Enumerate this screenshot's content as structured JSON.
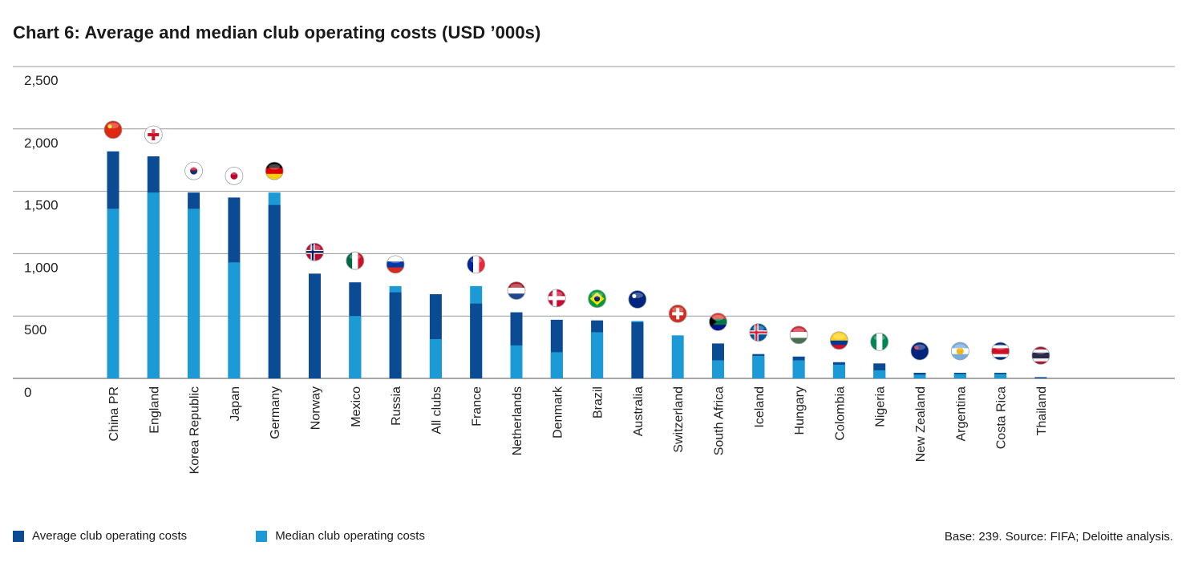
{
  "chart_data": {
    "type": "bar",
    "stacking": "overlay",
    "title": "Chart 6: Average and median club operating costs (USD ’000s)",
    "xlabel": "",
    "ylabel": "",
    "ylim": [
      0,
      2500
    ],
    "yticks": [
      0,
      500,
      1000,
      1500,
      2000,
      2500
    ],
    "ytick_labels": [
      "0",
      "500",
      "1,000",
      "1,500",
      "2,000",
      "2,500"
    ],
    "grid": true,
    "categories": [
      "China PR",
      "England",
      "Korea Republic",
      "Japan",
      "Germany",
      "Norway",
      "Mexico",
      "Russia",
      "All clubs",
      "France",
      "Netherlands",
      "Denmark",
      "Brazil",
      "Australia",
      "Switzerland",
      "South Africa",
      "Iceland",
      "Hungary",
      "Colombia",
      "Nigeria",
      "New Zealand",
      "Argentina",
      "Costa Rica",
      "Thailand"
    ],
    "series": [
      {
        "name": "Average club operating costs",
        "color": "#0a4b93",
        "values": [
          1820,
          1780,
          1490,
          1450,
          1390,
          840,
          770,
          690,
          675,
          600,
          530,
          470,
          465,
          450,
          0,
          280,
          195,
          175,
          130,
          120,
          45,
          45,
          45,
          10
        ]
      },
      {
        "name": "Median club operating costs",
        "color": "#1b9ad6",
        "values": [
          1360,
          1490,
          1360,
          930,
          1490,
          0,
          500,
          740,
          315,
          740,
          265,
          210,
          370,
          460,
          345,
          145,
          180,
          145,
          110,
          65,
          30,
          35,
          35,
          0
        ]
      }
    ],
    "flags": [
      "china",
      "england",
      "korea",
      "japan",
      "germany",
      "norway",
      "mexico",
      "russia",
      "",
      "france",
      "netherlands",
      "denmark",
      "brazil",
      "australia",
      "switzerland",
      "south-africa",
      "iceland",
      "hungary",
      "colombia",
      "nigeria",
      "new-zealand",
      "argentina",
      "costa-rica",
      "thailand"
    ]
  },
  "legend": {
    "average_label": "Average club operating costs",
    "median_label": "Median club operating costs",
    "average_color": "#0a4b93",
    "median_color": "#1b9ad6"
  },
  "footer": {
    "source": "Base: 239. Source: FIFA; Deloitte analysis."
  }
}
